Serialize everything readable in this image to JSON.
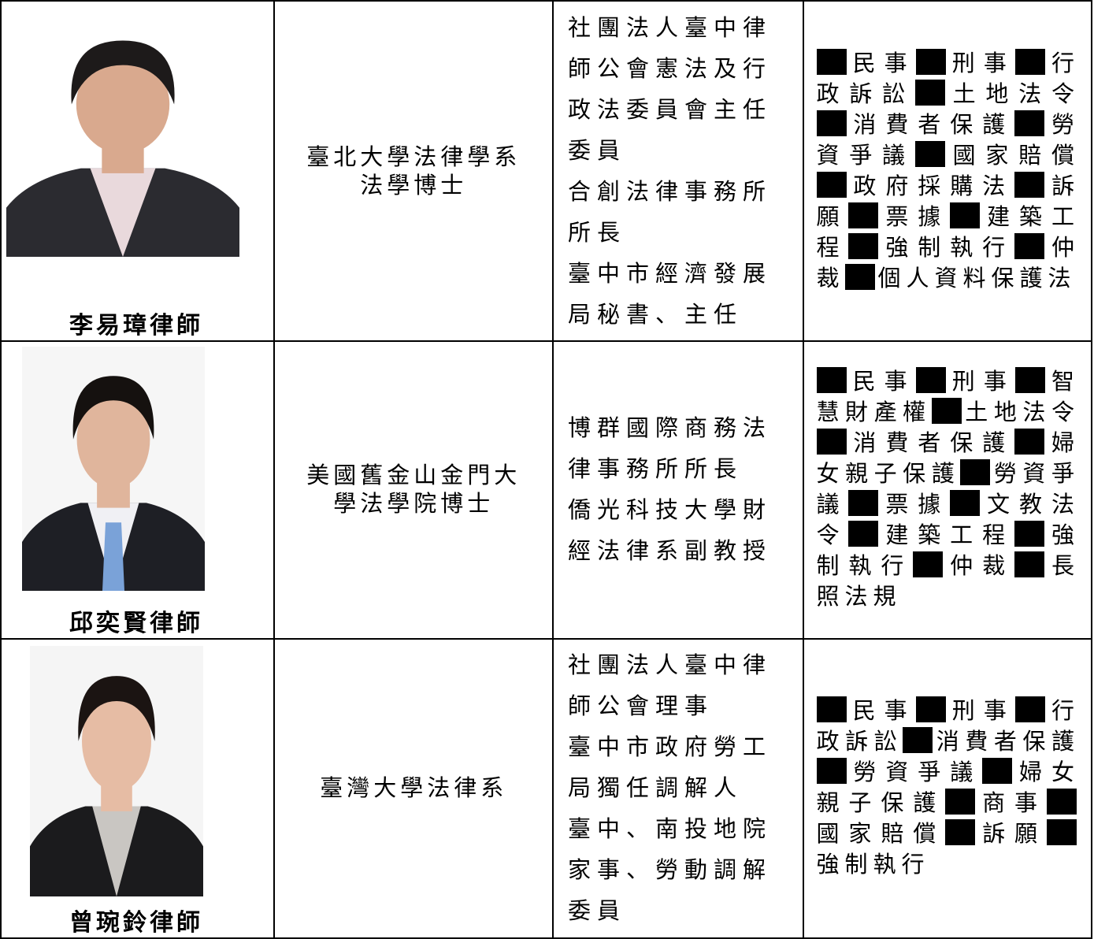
{
  "rows": [
    {
      "name": "李易璋律師",
      "education": [
        "臺北大學法律學系",
        "法學博士"
      ],
      "experience": [
        "社團法人臺中律師公會憲法及行政法委員會主任委員",
        "合創法律事務所所長",
        "臺中市經濟發展局秘書、主任"
      ],
      "specialties": [
        "民事",
        "刑事",
        "行政訴訟",
        "土地法令",
        "消費者保護",
        "勞資爭議",
        "國家賠償",
        "政府採購法",
        "訴願",
        "票據",
        "建築工程",
        "強制執行",
        "仲裁",
        "個人資料保護法"
      ]
    },
    {
      "name": "邱奕賢律師",
      "education": [
        "美國舊金山金門大",
        "學法學院博士"
      ],
      "experience": [
        "博群國際商務法律事務所所長",
        "僑光科技大學財經法律系副教授"
      ],
      "specialties": [
        "民事",
        "刑事",
        "智慧財產權",
        "土地法令",
        "消費者保護",
        "婦女親子保護",
        "勞資爭議",
        "票據",
        "文教法令",
        "建築工程",
        "強制執行",
        "仲裁",
        "長照法規"
      ]
    },
    {
      "name": "曾琬鈴律師",
      "education": [
        "臺灣大學法律系"
      ],
      "experience": [
        "社團法人臺中律師公會理事",
        "臺中市政府勞工局獨任調解人",
        "臺中、南投地院家事、勞動調解委員"
      ],
      "specialties": [
        "民事",
        "刑事",
        "行政訴訟",
        "消費者保護",
        "勞資爭議",
        "婦女親子保護",
        "商事",
        "國家賠償",
        "訴願",
        "強制執行"
      ]
    }
  ]
}
